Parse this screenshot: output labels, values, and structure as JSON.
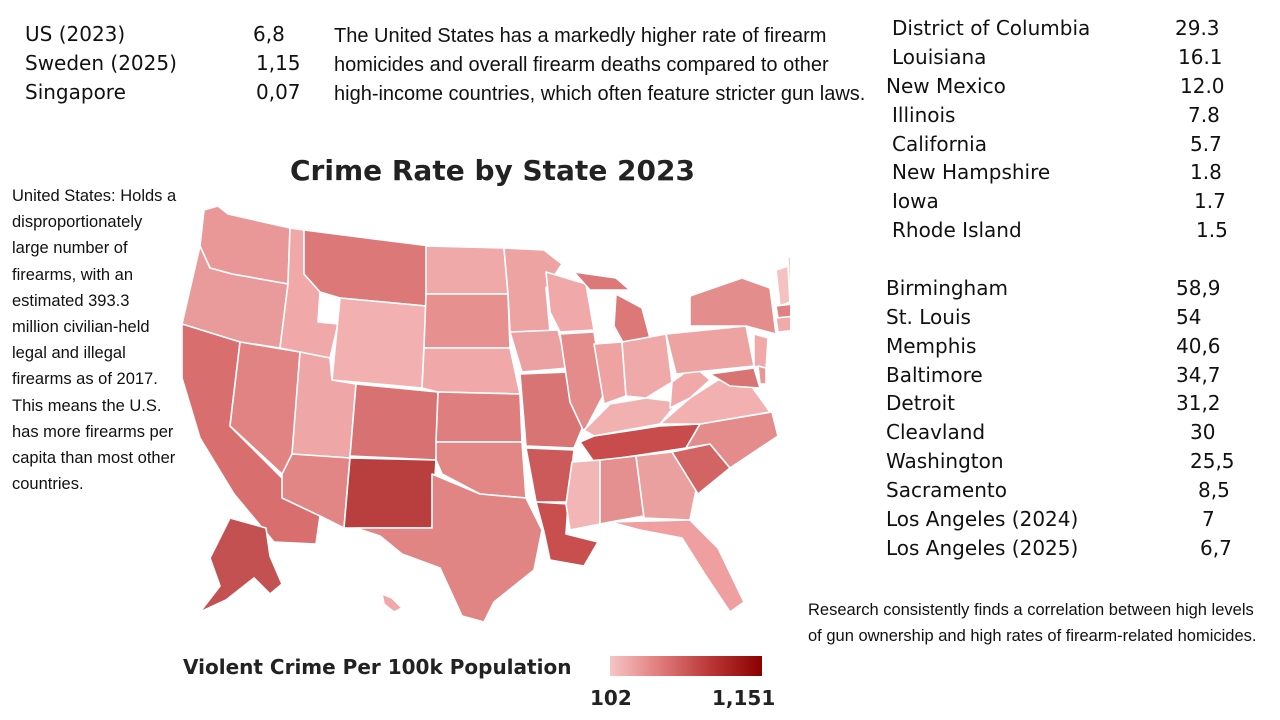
{
  "countries": [
    {
      "name": "US (2023)",
      "value": "6,8"
    },
    {
      "name": "Sweden (2025)",
      "value": "1,15"
    },
    {
      "name": "Singapore",
      "value": "0,07"
    }
  ],
  "top_paragraph": "The United States has a markedly higher rate of firearm homicides and overall firearm deaths compared to other high-income countries, which often feature stricter gun laws.",
  "left_paragraph": "United States: Holds a disproportionately large number of firearms, with an estimated 393.3 million civilian-held legal and illegal firearms as of 2017. This means the U.S. has more firearms per capita than most other countries.",
  "bottom_paragraph": "Research consistently finds a correlation between high levels of gun ownership and high rates of firearm-related homicides.",
  "map": {
    "title": "Crime Rate by State 2023",
    "legend_title": "Violent Crime Per 100k Population",
    "legend_min": "102",
    "legend_max": "1,151",
    "colors": {
      "low": "#f7c5c5",
      "mid": "#e07a7a",
      "high": "#b93535",
      "max": "#8b0000"
    }
  },
  "states": [
    {
      "name": "District of Columbia",
      "value": "29.3"
    },
    {
      "name": "Louisiana",
      "value": "16.1"
    },
    {
      "name": "New Mexico",
      "value": "12.0"
    },
    {
      "name": "Illinois",
      "value": "7.8"
    },
    {
      "name": "California",
      "value": "5.7"
    },
    {
      "name": "New Hampshire",
      "value": "1.8"
    },
    {
      "name": "Iowa",
      "value": "1.7"
    },
    {
      "name": "Rhode Island",
      "value": "1.5"
    }
  ],
  "cities": [
    {
      "name": "Birmingham",
      "value": "58,9"
    },
    {
      "name": "St. Louis",
      "value": "54"
    },
    {
      "name": "Memphis",
      "value": "40,6"
    },
    {
      "name": "Baltimore",
      "value": "34,7"
    },
    {
      "name": "Detroit",
      "value": "31,2"
    },
    {
      "name": "Cleavland",
      "value": "30"
    },
    {
      "name": "Washington",
      "value": "25,5"
    },
    {
      "name": "Sacramento",
      "value": "8,5"
    },
    {
      "name": "Los Angeles (2024)",
      "value": "7"
    },
    {
      "name": "Los Angeles (2025)",
      "value": "6,7"
    }
  ]
}
